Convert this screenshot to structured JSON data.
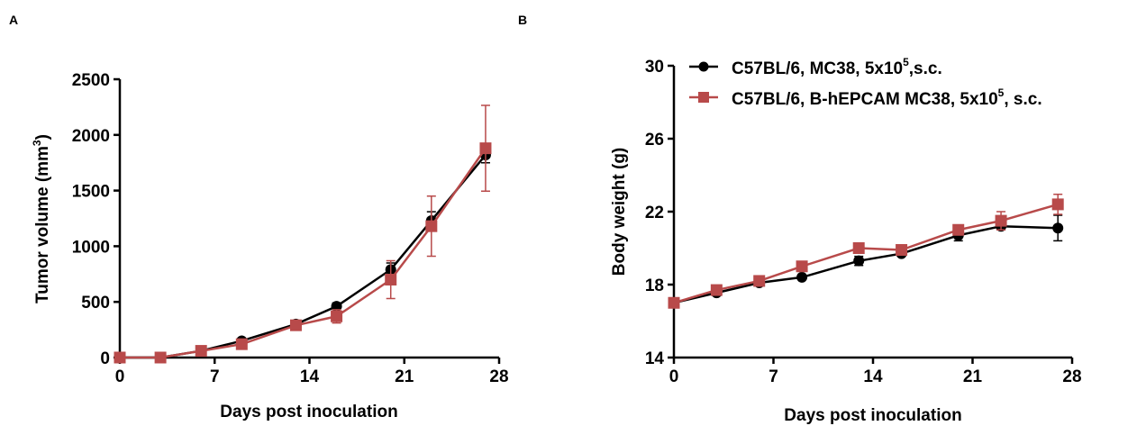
{
  "colors": {
    "black_series": "#000000",
    "red_series": "#b84a4a"
  },
  "chart_data": [
    {
      "panel_label": "A",
      "type": "line",
      "xlabel": "Days post inoculation",
      "ylabel": "Tumor volume (mm",
      "ylabel_sup": "3",
      "ylabel_close": ")",
      "xlim": [
        0,
        28
      ],
      "ylim": [
        0,
        2500
      ],
      "xticks": [
        0,
        7,
        14,
        21,
        28
      ],
      "yticks": [
        0,
        500,
        1000,
        1500,
        2000,
        2500
      ],
      "grid": false,
      "x": [
        0,
        3,
        6,
        9,
        13,
        16,
        20,
        23,
        27
      ],
      "series": [
        {
          "marker": "circle",
          "color": "#000000",
          "values": [
            0,
            0,
            60,
            150,
            300,
            460,
            790,
            1230,
            1820
          ],
          "errors": [
            0,
            0,
            10,
            20,
            25,
            30,
            60,
            80,
            70
          ]
        },
        {
          "marker": "square",
          "color": "#b84a4a",
          "values": [
            0,
            0,
            60,
            120,
            290,
            370,
            700,
            1180,
            1880
          ],
          "errors": [
            0,
            0,
            10,
            20,
            25,
            60,
            170,
            270,
            385
          ]
        }
      ]
    },
    {
      "panel_label": "B",
      "type": "line",
      "xlabel": "Days post inoculation",
      "ylabel": "Body weight (g)",
      "xlim": [
        0,
        28
      ],
      "ylim": [
        14,
        30
      ],
      "xticks": [
        0,
        7,
        14,
        21,
        28
      ],
      "yticks": [
        14,
        18,
        22,
        26,
        30
      ],
      "grid": false,
      "legend_position": "top",
      "x": [
        0,
        3,
        6,
        9,
        13,
        16,
        20,
        23,
        27
      ],
      "series": [
        {
          "name": "C57BL/6, MC38, 5x10",
          "name_sup": "5",
          "name_suffix": ",s.c.",
          "marker": "circle",
          "color": "#000000",
          "values": [
            17.0,
            17.55,
            18.1,
            18.4,
            19.3,
            19.7,
            20.7,
            21.2,
            21.1
          ],
          "errors": [
            0.1,
            0.15,
            0.1,
            0.1,
            0.25,
            0.1,
            0.3,
            0.2,
            0.7
          ]
        },
        {
          "name": "C57BL/6, B-hEPCAM MC38, 5x10",
          "name_sup": "5",
          "name_suffix": ", s.c.",
          "marker": "square",
          "color": "#b84a4a",
          "values": [
            17.0,
            17.7,
            18.2,
            19.0,
            20.0,
            19.9,
            21.0,
            21.5,
            22.4
          ],
          "errors": [
            0.1,
            0.1,
            0.1,
            0.1,
            0.1,
            0.1,
            0.1,
            0.5,
            0.55
          ]
        }
      ]
    }
  ]
}
